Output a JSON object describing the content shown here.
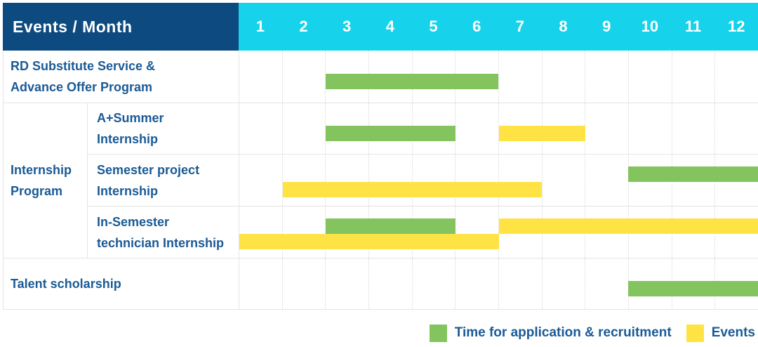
{
  "header": {
    "title": "Events / Month",
    "months": [
      "1",
      "2",
      "3",
      "4",
      "5",
      "6",
      "7",
      "8",
      "9",
      "10",
      "11",
      "12"
    ]
  },
  "colors": {
    "navy": "#0c4a80",
    "cyan": "#16d2eb",
    "green": "#84c45f",
    "yellow": "#ffe345",
    "label_blue": "#1a5a96",
    "grid_solid": "#e4e4e4",
    "grid_dotted": "#d9d9d9"
  },
  "group_display": {
    "Internship Program": [
      "Internship",
      "Program"
    ]
  },
  "legend": {
    "items": [
      {
        "label": "Time for application & recruitment",
        "color": "#84c45f"
      },
      {
        "label": "Events",
        "color": "#ffe345"
      }
    ]
  },
  "chart_data": {
    "type": "bar",
    "subtype": "gantt-schedule",
    "title": "Events / Month",
    "xlabel": "Month",
    "x": {
      "ticks": [
        1,
        2,
        3,
        4,
        5,
        6,
        7,
        8,
        9,
        10,
        11,
        12
      ],
      "range": [
        1,
        12
      ]
    },
    "grid": "vertical dotted month separators, horizontal solid row separators",
    "legend_position": "bottom-right",
    "series_legend": [
      {
        "name": "Time for application & recruitment",
        "color": "#84c45f"
      },
      {
        "name": "Events",
        "color": "#ffe345"
      }
    ],
    "rows": [
      {
        "group": null,
        "label": "RD Substitute Service & Advance Offer Program",
        "label_lines": [
          "RD Substitute Service &",
          "Advance Offer Program"
        ],
        "bars": [
          {
            "series": "Time for application & recruitment",
            "start_month": 3,
            "end_month": 6,
            "lane": "single"
          }
        ]
      },
      {
        "group": "Internship Program",
        "label": "A+Summer Internship",
        "label_lines": [
          "A+Summer",
          "Internship"
        ],
        "bars": [
          {
            "series": "Time for application & recruitment",
            "start_month": 3,
            "end_month": 5,
            "lane": "single"
          },
          {
            "series": "Events",
            "start_month": 7,
            "end_month": 8,
            "lane": "single"
          }
        ]
      },
      {
        "group": "Internship Program",
        "label": "Semester project Internship",
        "label_lines": [
          "Semester project",
          "Internship"
        ],
        "bars": [
          {
            "series": "Time for application & recruitment",
            "start_month": 10,
            "end_month": 12,
            "lane": "upper"
          },
          {
            "series": "Events",
            "start_month": 2,
            "end_month": 7,
            "lane": "lower"
          }
        ]
      },
      {
        "group": "Internship Program",
        "label": "In-Semester technician Internship",
        "label_lines": [
          "In-Semester",
          "technician Internship"
        ],
        "bars": [
          {
            "series": "Time for application & recruitment",
            "start_month": 3,
            "end_month": 5,
            "lane": "upper"
          },
          {
            "series": "Events",
            "start_month": 7,
            "end_month": 12,
            "lane": "upper"
          },
          {
            "series": "Events",
            "start_month": 1,
            "end_month": 6,
            "lane": "lower"
          }
        ]
      },
      {
        "group": null,
        "label": "Talent scholarship",
        "label_lines": [
          "Talent scholarship"
        ],
        "bars": [
          {
            "series": "Time for application & recruitment",
            "start_month": 10,
            "end_month": 12,
            "lane": "single"
          }
        ]
      }
    ]
  }
}
